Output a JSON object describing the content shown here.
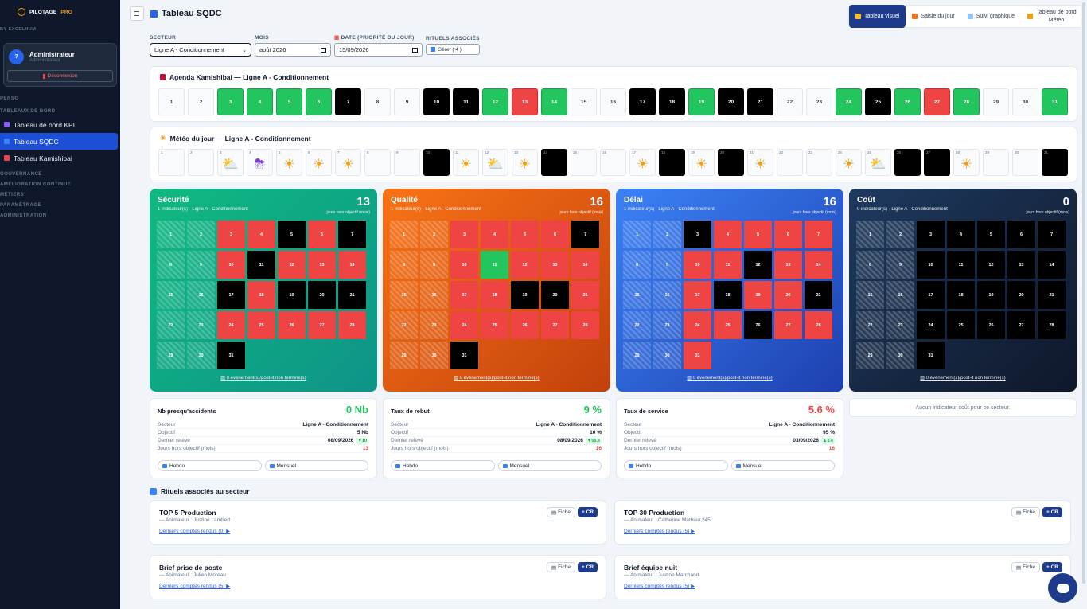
{
  "app": {
    "logo_main": "PILOTAGE",
    "logo_accent": "PRO",
    "byline": "BY EXCELHUM"
  },
  "user": {
    "initial": "?",
    "name": "Administrateur",
    "role": "Administrateur",
    "logout": "Déconnexion"
  },
  "nav": {
    "perso": "PERSO",
    "tableaux": "TABLEAUX DE BORD",
    "items": [
      {
        "label": "Tableau de bord KPI",
        "color": "#8b5cf6"
      },
      {
        "label": "Tableau SQDC",
        "color": "#3b82f6"
      },
      {
        "label": "Tableau Kamishibai",
        "color": "#ef4444"
      }
    ],
    "sections": [
      "GOUVERNANCE",
      "AMÉLIORATION CONTINUE",
      "MÉTIERS",
      "PARAMÉTRAGE",
      "ADMINISTRATION"
    ]
  },
  "header": {
    "title": "Tableau SQDC"
  },
  "views": [
    {
      "label": "Tableau visuel",
      "color": "#fbbf24"
    },
    {
      "label": "Saisie du jour",
      "color": "#f97316"
    },
    {
      "label": "Suivi graphique",
      "color": "#93c5fd"
    },
    {
      "label": "Tableau de bord Météo",
      "color": "#f59e0b"
    }
  ],
  "filters": {
    "secteur_label": "SECTEUR",
    "secteur_value": "Ligne A - Conditionnement",
    "mois_label": "MOIS",
    "mois_value": "août 2026",
    "date_label": "DATE (PRIORITÉ DU JOUR)",
    "date_value": "15/09/2026",
    "rituels_label": "RITUELS ASSOCIÉS",
    "gerer": "Gérer ( 4 )"
  },
  "kamishibai": {
    "title": "Agenda Kamishibai — Ligne A - Conditionnement",
    "days": [
      {
        "n": "1",
        "s": "none"
      },
      {
        "n": "2",
        "s": "none"
      },
      {
        "n": "3",
        "s": "green"
      },
      {
        "n": "4",
        "s": "green"
      },
      {
        "n": "5",
        "s": "green"
      },
      {
        "n": "6",
        "s": "green"
      },
      {
        "n": "7",
        "s": "black"
      },
      {
        "n": "8",
        "s": "none"
      },
      {
        "n": "9",
        "s": "none"
      },
      {
        "n": "10",
        "s": "black"
      },
      {
        "n": "11",
        "s": "black"
      },
      {
        "n": "12",
        "s": "green"
      },
      {
        "n": "13",
        "s": "red"
      },
      {
        "n": "14",
        "s": "green"
      },
      {
        "n": "15",
        "s": "none"
      },
      {
        "n": "16",
        "s": "none"
      },
      {
        "n": "17",
        "s": "black"
      },
      {
        "n": "18",
        "s": "black"
      },
      {
        "n": "19",
        "s": "green"
      },
      {
        "n": "20",
        "s": "black"
      },
      {
        "n": "21",
        "s": "black"
      },
      {
        "n": "22",
        "s": "none"
      },
      {
        "n": "23",
        "s": "none"
      },
      {
        "n": "24",
        "s": "green"
      },
      {
        "n": "25",
        "s": "black"
      },
      {
        "n": "26",
        "s": "green"
      },
      {
        "n": "27",
        "s": "red"
      },
      {
        "n": "28",
        "s": "green"
      },
      {
        "n": "29",
        "s": "none"
      },
      {
        "n": "30",
        "s": "none"
      },
      {
        "n": "31",
        "s": "green"
      }
    ]
  },
  "meteo": {
    "title": "Météo du jour — Ligne A - Conditionnement",
    "days": [
      {
        "n": "1",
        "s": "none",
        "icon": ""
      },
      {
        "n": "2",
        "s": "none",
        "icon": ""
      },
      {
        "n": "3",
        "s": "none",
        "icon": "cloud-sun-icon"
      },
      {
        "n": "4",
        "s": "none",
        "icon": "storm-icon"
      },
      {
        "n": "5",
        "s": "none",
        "icon": "sun-icon"
      },
      {
        "n": "6",
        "s": "none",
        "icon": "sun-icon"
      },
      {
        "n": "7",
        "s": "none",
        "icon": "sun-icon"
      },
      {
        "n": "8",
        "s": "none",
        "icon": ""
      },
      {
        "n": "9",
        "s": "none",
        "icon": ""
      },
      {
        "n": "10",
        "s": "black",
        "icon": ""
      },
      {
        "n": "11",
        "s": "none",
        "icon": "sun-icon"
      },
      {
        "n": "12",
        "s": "none",
        "icon": "cloud-sun-icon"
      },
      {
        "n": "13",
        "s": "none",
        "icon": "sun-icon"
      },
      {
        "n": "14",
        "s": "black",
        "icon": ""
      },
      {
        "n": "15",
        "s": "none",
        "icon": ""
      },
      {
        "n": "16",
        "s": "none",
        "icon": ""
      },
      {
        "n": "17",
        "s": "none",
        "icon": "sun-icon"
      },
      {
        "n": "18",
        "s": "black",
        "icon": ""
      },
      {
        "n": "19",
        "s": "none",
        "icon": "sun-icon"
      },
      {
        "n": "20",
        "s": "black",
        "icon": ""
      },
      {
        "n": "21",
        "s": "none",
        "icon": "sun-icon"
      },
      {
        "n": "22",
        "s": "none",
        "icon": ""
      },
      {
        "n": "23",
        "s": "none",
        "icon": ""
      },
      {
        "n": "24",
        "s": "none",
        "icon": "sun-icon"
      },
      {
        "n": "25",
        "s": "none",
        "icon": "cloud-sun-icon"
      },
      {
        "n": "26",
        "s": "black",
        "icon": ""
      },
      {
        "n": "27",
        "s": "black",
        "icon": ""
      },
      {
        "n": "28",
        "s": "none",
        "icon": "sun-icon"
      },
      {
        "n": "29",
        "s": "none",
        "icon": ""
      },
      {
        "n": "30",
        "s": "none",
        "icon": ""
      },
      {
        "n": "31",
        "s": "black",
        "icon": ""
      }
    ]
  },
  "sqdc": [
    {
      "name": "Sécurité",
      "sub": "1 indicateur(s) · Ligne A - Conditionnement",
      "count": "13",
      "cap": "jours hors objectif (mois)",
      "bg": "linear-gradient(135deg,#10b981,#0d9488)",
      "link": "0 événement(s)/post-it non terminé(s)",
      "cells": [
        "h",
        "h",
        "r",
        "r",
        "b",
        "r",
        "b",
        "h",
        "h",
        "r",
        "b",
        "r",
        "r",
        "r",
        "h",
        "h",
        "b",
        "r",
        "b",
        "b",
        "b",
        "h",
        "h",
        "r",
        "r",
        "r",
        "r",
        "r",
        "h",
        "h",
        "b"
      ]
    },
    {
      "name": "Qualité",
      "sub": "1 indicateur(s) · Ligne A - Conditionnement",
      "count": "16",
      "cap": "jours hors objectif (mois)",
      "bg": "linear-gradient(135deg,#f97316,#c2410c)",
      "link": "0 événement(s)/post-it non terminé(s)",
      "cells": [
        "h",
        "h",
        "r",
        "r",
        "r",
        "r",
        "b",
        "h",
        "h",
        "r",
        "g",
        "r",
        "r",
        "r",
        "h",
        "h",
        "r",
        "r",
        "b",
        "b",
        "r",
        "h",
        "h",
        "r",
        "r",
        "r",
        "r",
        "r",
        "h",
        "h",
        "b"
      ]
    },
    {
      "name": "Délai",
      "sub": "1 indicateur(s) · Ligne A - Conditionnement",
      "count": "16",
      "cap": "jours hors objectif (mois)",
      "bg": "linear-gradient(135deg,#3b82f6,#1e40af)",
      "link": "0 événement(s)/post-it non terminé(s)",
      "cells": [
        "h",
        "h",
        "b",
        "r",
        "r",
        "r",
        "r",
        "h",
        "h",
        "r",
        "r",
        "b",
        "r",
        "r",
        "h",
        "h",
        "r",
        "b",
        "r",
        "r",
        "b",
        "h",
        "h",
        "r",
        "r",
        "b",
        "r",
        "r",
        "h",
        "h",
        "r"
      ]
    },
    {
      "name": "Coût",
      "sub": "0 indicateur(s) · Ligne A - Conditionnement",
      "count": "0",
      "cap": "jours hors objectif (mois)",
      "bg": "linear-gradient(135deg,#1e3a5f,#0f172a)",
      "link": "0 événement(s)/post-it non terminé(s)",
      "cells": [
        "h",
        "h",
        "b",
        "b",
        "b",
        "b",
        "b",
        "h",
        "h",
        "b",
        "b",
        "b",
        "b",
        "b",
        "h",
        "h",
        "b",
        "b",
        "b",
        "b",
        "b",
        "h",
        "h",
        "b",
        "b",
        "b",
        "b",
        "b",
        "h",
        "h",
        "b"
      ]
    }
  ],
  "indicators": [
    {
      "name": "Nb presqu'accidents",
      "value": "0 Nb",
      "value_color": "#22c55e",
      "secteur": "Ligne A - Conditionnement",
      "objectif": "5 Nb",
      "releve": "08/09/2026",
      "delta": "▼10",
      "delta_bg": "#dcfce7",
      "delta_color": "#16a34a",
      "jours": "13"
    },
    {
      "name": "Taux de rebut",
      "value": "9 %",
      "value_color": "#22c55e",
      "secteur": "Ligne A - Conditionnement",
      "objectif": "10 %",
      "releve": "08/09/2026",
      "delta": "▼55.3",
      "delta_bg": "#dcfce7",
      "delta_color": "#16a34a",
      "jours": "16"
    },
    {
      "name": "Taux de service",
      "value": "5.6 %",
      "value_color": "#ef4444",
      "secteur": "Ligne A - Conditionnement",
      "objectif": "95 %",
      "releve": "03/09/2026",
      "delta": "▲3.4",
      "delta_bg": "#dcfce7",
      "delta_color": "#16a34a",
      "jours": "16"
    }
  ],
  "ind_labels": {
    "secteur": "Secteur",
    "objectif": "Objectif",
    "releve": "Dernier relevé",
    "jours": "Jours hors objectif (mois)",
    "hebdo": "Hebdo",
    "mensuel": "Mensuel"
  },
  "no_cost": "Aucun indicateur coût pour ce secteur.",
  "rituels": {
    "title": "Rituels associés au secteur",
    "fiche": "Fiche",
    "add": "+ CR",
    "items": [
      {
        "name": "TOP 5 Production",
        "anim": "— Animateur : Justine Lambert",
        "link": "Derniers comptes rendus (0) ▶"
      },
      {
        "name": "TOP 30 Production",
        "anim": "— Animateur : Catherine Mathieu 245",
        "link": "Derniers comptes rendus (5) ▶"
      },
      {
        "name": "Brief prise de poste",
        "anim": "— Animateur : Julien Moreau",
        "link": "Derniers comptes rendus (5) ▶"
      },
      {
        "name": "Brief équipe nuit",
        "anim": "— Animateur : Justine Marchand",
        "link": "Derniers comptes rendus (5) ▶"
      }
    ]
  }
}
